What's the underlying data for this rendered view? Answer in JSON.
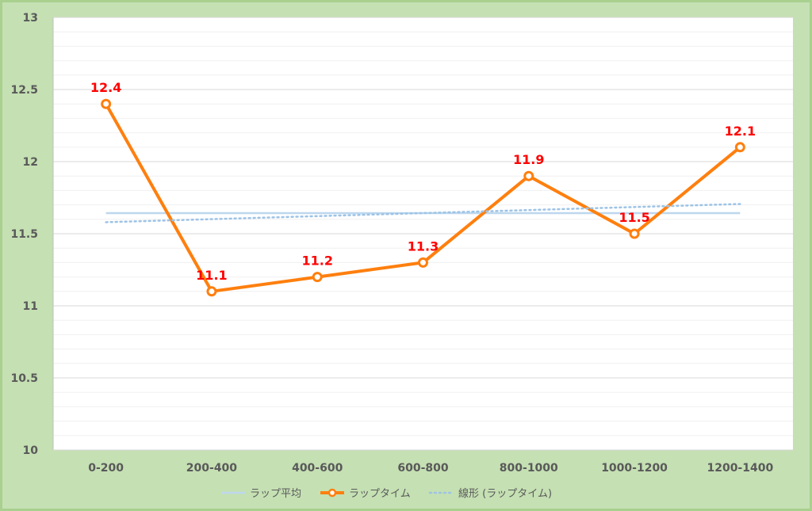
{
  "chart_data": {
    "type": "line",
    "categories": [
      "0-200",
      "200-400",
      "400-600",
      "600-800",
      "800-1000",
      "1000-1200",
      "1200-1400"
    ],
    "ylim": [
      10,
      13
    ],
    "yticks": [
      "10",
      "10.5",
      "11",
      "11.5",
      "12",
      "12.5",
      "13"
    ],
    "grid": true,
    "legend_position": "bottom",
    "series": [
      {
        "name": "ラップ平均",
        "style": "solid",
        "color": "#bdd7ee",
        "values": [
          11.643,
          11.643,
          11.643,
          11.643,
          11.643,
          11.643,
          11.643
        ]
      },
      {
        "name": "ラップタイム",
        "style": "marker-line",
        "color": "#ff7f0e",
        "values": [
          12.4,
          11.1,
          11.2,
          11.3,
          11.9,
          11.5,
          12.1
        ],
        "data_labels": [
          "12.4",
          "11.1",
          "11.2",
          "11.3",
          "11.9",
          "11.5",
          "12.1"
        ]
      },
      {
        "name": "線形 (ラップタイム)",
        "style": "dotted",
        "color": "#9dc3e6",
        "values": [
          11.58,
          11.601,
          11.622,
          11.643,
          11.664,
          11.685,
          11.706
        ]
      }
    ],
    "label_color": "#ff0000",
    "background_color": "#c5e0b3",
    "plot_color": "#ffffff"
  }
}
